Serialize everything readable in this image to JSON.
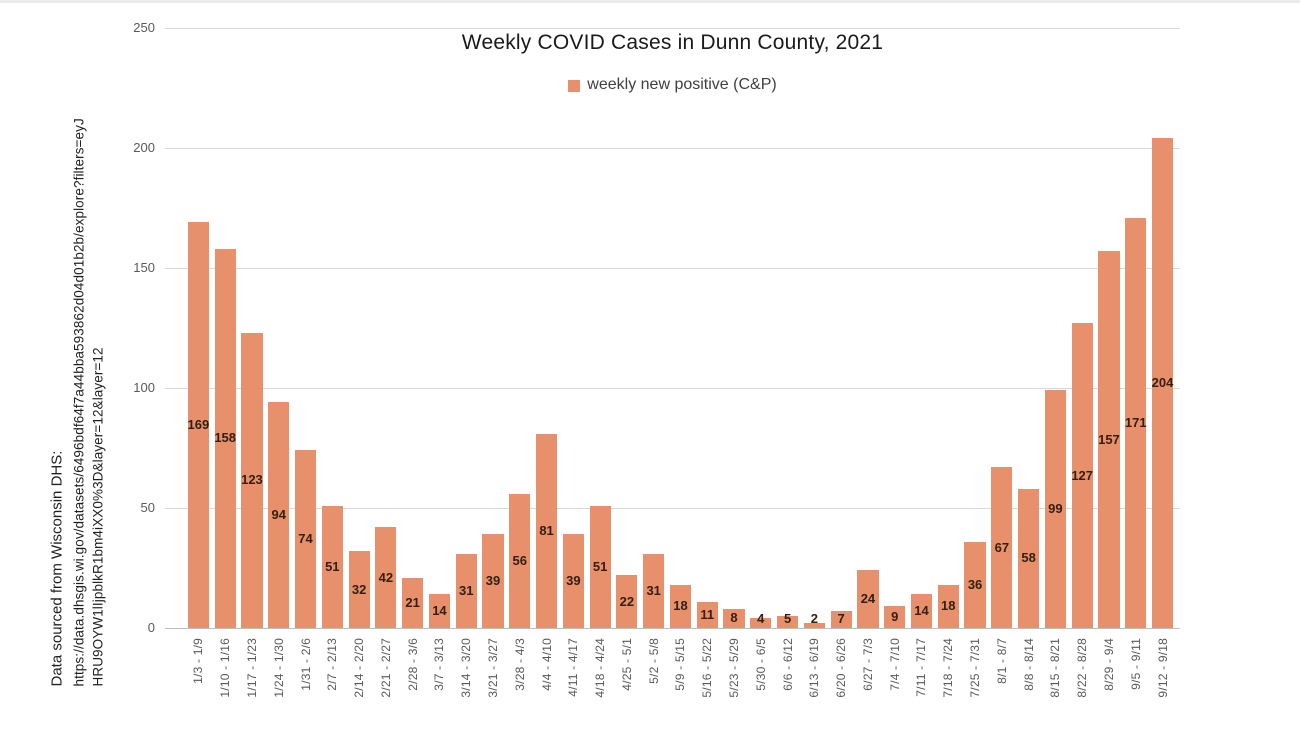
{
  "source_note": {
    "line1": "Data sourced from Wisconsin DHS:",
    "line2": "https://data.dhsgis.wi.gov/datasets/6496bdf64f7a44bba593862d04d01b2b/explore?filters=eyJ",
    "line3": "HRU9OYW1lIjpblkR1bm4iXX0%3D&layer=12&layer=12"
  },
  "chart_data": {
    "type": "bar",
    "title": "Weekly COVID Cases in Dunn County, 2021",
    "legend": [
      {
        "label": "weekly new positive (C&P)",
        "color": "#e7906b"
      }
    ],
    "legend_position": "top",
    "categories": [
      "1/3 - 1/9",
      "1/10 - 1/16",
      "1/17 - 1/23",
      "1/24 - 1/30",
      "1/31 - 2/6",
      "2/7 - 2/13",
      "2/14 - 2/20",
      "2/21 - 2/27",
      "2/28 - 3/6",
      "3/7 - 3/13",
      "3/14 - 3/20",
      "3/21 - 3/27",
      "3/28 - 4/3",
      "4/4 - 4/10",
      "4/11 - 4/17",
      "4/18 - 4/24",
      "4/25 - 5/1",
      "5/2 - 5/8",
      "5/9 - 5/15",
      "5/16 - 5/22",
      "5/23 - 5/29",
      "5/30 - 6/5",
      "6/6 - 6/12",
      "6/13 - 6/19",
      "6/20 - 6/26",
      "6/27 - 7/3",
      "7/4 - 7/10",
      "7/11 - 7/17",
      "7/18 - 7/24",
      "7/25 - 7/31",
      "8/1 - 8/7",
      "8/8 - 8/14",
      "8/15 - 8/21",
      "8/22 - 8/28",
      "8/29 - 9/4",
      "9/5 - 9/11",
      "9/12 - 9/18"
    ],
    "values": [
      169,
      158,
      123,
      94,
      74,
      51,
      32,
      42,
      21,
      14,
      31,
      39,
      56,
      81,
      39,
      51,
      22,
      31,
      18,
      11,
      8,
      4,
      5,
      2,
      7,
      24,
      9,
      14,
      18,
      36,
      67,
      58,
      99,
      127,
      157,
      171,
      204
    ],
    "xlabel": "",
    "ylabel": "",
    "ylim": [
      0,
      250
    ],
    "yticks": [
      0,
      50,
      100,
      150,
      200,
      250
    ],
    "grid": true,
    "colors": {
      "bar": "#e7906b",
      "data_label": "#33200f",
      "gridline": "#d9d9d9",
      "axis_line": "#bfbfbf",
      "tick_text": "#595959"
    }
  }
}
